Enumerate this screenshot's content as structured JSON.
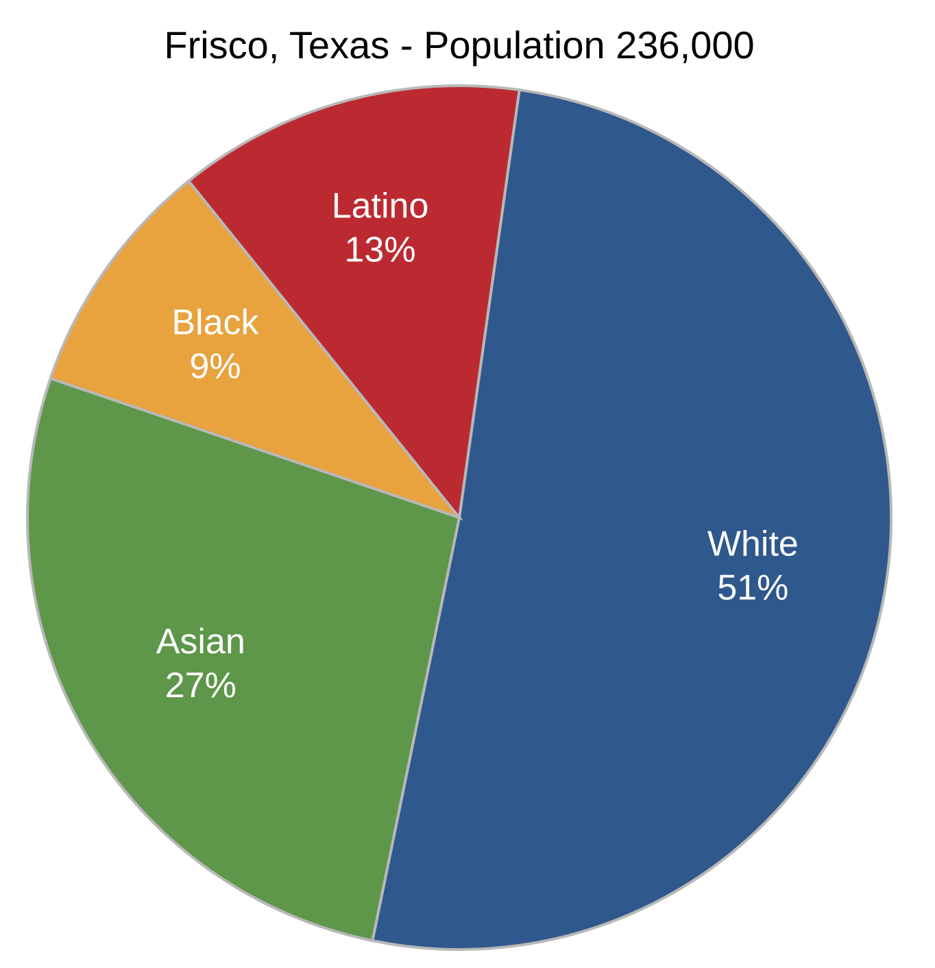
{
  "chart_data": {
    "type": "pie",
    "title": "Frisco, Texas - Population 236,000",
    "categories": [
      "White",
      "Asian",
      "Black",
      "Latino"
    ],
    "values": [
      51,
      27,
      9,
      13
    ],
    "value_labels": [
      "51%",
      "27%",
      "9%",
      "13%"
    ],
    "colors": [
      "#2f588c",
      "#5e964a",
      "#e8a23e",
      "#bc2a31"
    ]
  }
}
